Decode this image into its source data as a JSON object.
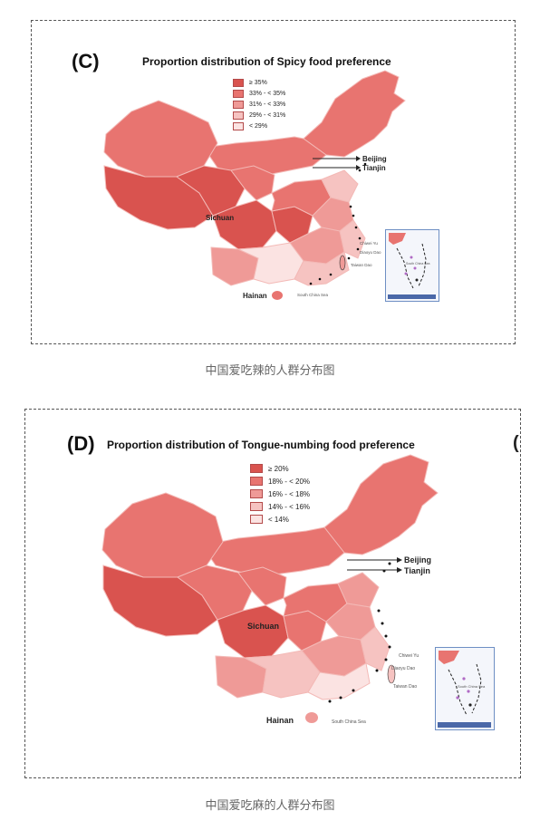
{
  "panels": [
    {
      "letter": "(C)",
      "title": "Proportion distribution of Spicy food preference",
      "legend": [
        {
          "label": "≥ 35%",
          "color": "#d9534f"
        },
        {
          "label": "33% - < 35%",
          "color": "#e87470"
        },
        {
          "label": "31% - < 33%",
          "color": "#ef9a97"
        },
        {
          "label": "29% - < 31%",
          "color": "#f6c3c1"
        },
        {
          "label": "< 29%",
          "color": "#fbe3e2"
        }
      ],
      "labels": {
        "beijing": "Beijing",
        "tianjin": "Tianjin",
        "sichuan": "Sichuan",
        "hainan": "Hainan",
        "south_china_sea": "South China Sea",
        "chiwei_yu": "Chiwei Yu",
        "diaoyu_dao": "Diaoyu Dao",
        "taiwan_dao": "Taiwan Dao",
        "inset_sea": "South China Sea"
      },
      "caption": "中国爱吃辣的人群分布图"
    },
    {
      "letter": "(D)",
      "title": "Proportion distribution of Tongue-numbing food preference",
      "legend": [
        {
          "label": "≥ 20%",
          "color": "#d9534f"
        },
        {
          "label": "18% - < 20%",
          "color": "#e87470"
        },
        {
          "label": "16% - < 18%",
          "color": "#ef9a97"
        },
        {
          "label": "14% - < 16%",
          "color": "#f6c3c1"
        },
        {
          "label": "< 14%",
          "color": "#fbe3e2"
        }
      ],
      "labels": {
        "beijing": "Beijing",
        "tianjin": "Tianjin",
        "sichuan": "Sichuan",
        "hainan": "Hainan",
        "south_china_sea": "South China Sea",
        "chiwei_yu": "Chiwei Yu",
        "diaoyu_dao": "Diaoyu Dao",
        "taiwan_dao": "Taiwan Dao",
        "inset_sea": "South China Sea"
      },
      "caption": "中国爱吃麻的人群分布图"
    }
  ]
}
